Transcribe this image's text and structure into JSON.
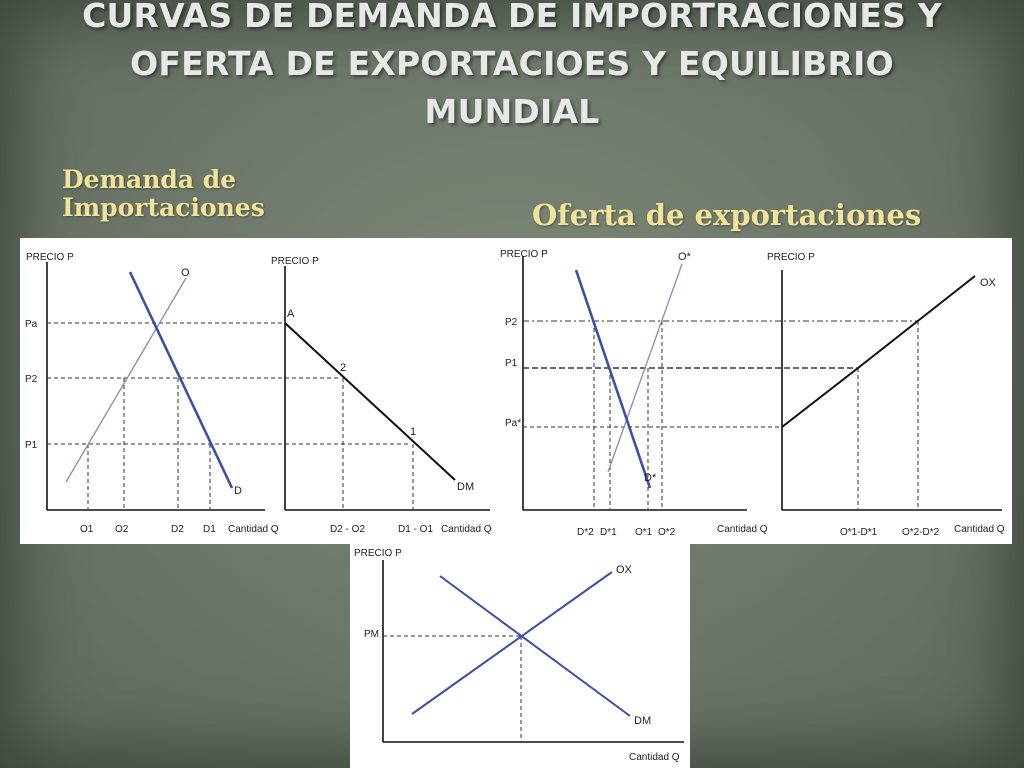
{
  "slide": {
    "title": "CURVAS DE DEMANDA DE IMPORTRACIONES Y OFERTA DE EXPORTACIOES Y EQUILIBRIO MUNDIAL",
    "subtitle_left": "Demanda de Importaciones",
    "subtitle_right": "Oferta de exportaciones"
  },
  "chart_data": [
    {
      "type": "line",
      "ylabel": "PRECIO P",
      "xlabel": "Cantidad Q",
      "y_ticks": [
        "Pa",
        "P2",
        "P1"
      ],
      "x_ticks": [
        "O1",
        "O2",
        "D2",
        "D1"
      ],
      "series": [
        {
          "name": "O",
          "color": "#8a8ab8"
        },
        {
          "name": "D",
          "color": "#3a4fa8"
        }
      ]
    },
    {
      "type": "line",
      "ylabel": "PRECIO P",
      "xlabel": "Cantidad Q",
      "x_ticks": [
        "D2 - O2",
        "D1 - O1"
      ],
      "series": [
        {
          "name": "DM",
          "color": "#111111"
        }
      ],
      "points": [
        "A",
        "2",
        "1"
      ]
    },
    {
      "type": "line",
      "ylabel": "PRECIO P",
      "xlabel": "Cantidad Q",
      "y_ticks": [
        "P2",
        "P1",
        "Pa*"
      ],
      "x_ticks": [
        "D*2",
        "D*1",
        "O*1",
        "O*2"
      ],
      "series": [
        {
          "name": "O*",
          "color": "#8a8ab8"
        },
        {
          "name": "D*",
          "color": "#3a4fa8"
        }
      ]
    },
    {
      "type": "line",
      "ylabel": "PRECIO P",
      "xlabel": "Cantidad Q",
      "x_ticks": [
        "O*1-D*1",
        "O*2-D*2"
      ],
      "series": [
        {
          "name": "OX",
          "color": "#111111"
        }
      ]
    },
    {
      "type": "line",
      "ylabel": "PRECIO P",
      "xlabel": "Cantidad Q",
      "y_ticks": [
        "PM"
      ],
      "series": [
        {
          "name": "OX",
          "color": "#3a4fa8"
        },
        {
          "name": "DM",
          "color": "#3a4fa8"
        }
      ]
    }
  ]
}
